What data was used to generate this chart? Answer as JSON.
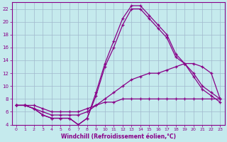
{
  "xlabel": "Windchill (Refroidissement éolien,°C)",
  "xlim": [
    -0.5,
    23.5
  ],
  "ylim": [
    4,
    23
  ],
  "xticks": [
    0,
    1,
    2,
    3,
    4,
    5,
    6,
    7,
    8,
    9,
    10,
    11,
    12,
    13,
    14,
    15,
    16,
    17,
    18,
    19,
    20,
    21,
    22,
    23
  ],
  "yticks": [
    4,
    6,
    8,
    10,
    12,
    14,
    16,
    18,
    20,
    22
  ],
  "background_color": "#c5eaed",
  "line_color": "#880088",
  "grid_color": "#a0b8cc",
  "series": [
    [
      7,
      7,
      6.5,
      5.5,
      5,
      5,
      5,
      4,
      5,
      9,
      13.5,
      17,
      20.5,
      22.5,
      22.5,
      21,
      19.5,
      18,
      15,
      13.5,
      12,
      10,
      9,
      8
    ],
    [
      7,
      7,
      6.5,
      5.5,
      5,
      5,
      5,
      4,
      5,
      8.5,
      13,
      16,
      19.5,
      22,
      22,
      20.5,
      19,
      17.5,
      14.5,
      13.5,
      11.5,
      9.5,
      8.5,
      7.5
    ],
    [
      7,
      7,
      6.5,
      6,
      5.5,
      5.5,
      5.5,
      5.5,
      6,
      7,
      8,
      9,
      10,
      11,
      11.5,
      12,
      12,
      12.5,
      13,
      13.5,
      13.5,
      13,
      12,
      8
    ],
    [
      7,
      7,
      7,
      6.5,
      6,
      6,
      6,
      6,
      6.5,
      7,
      7.5,
      7.5,
      8,
      8,
      8,
      8,
      8,
      8,
      8,
      8,
      8,
      8,
      8,
      8
    ]
  ]
}
